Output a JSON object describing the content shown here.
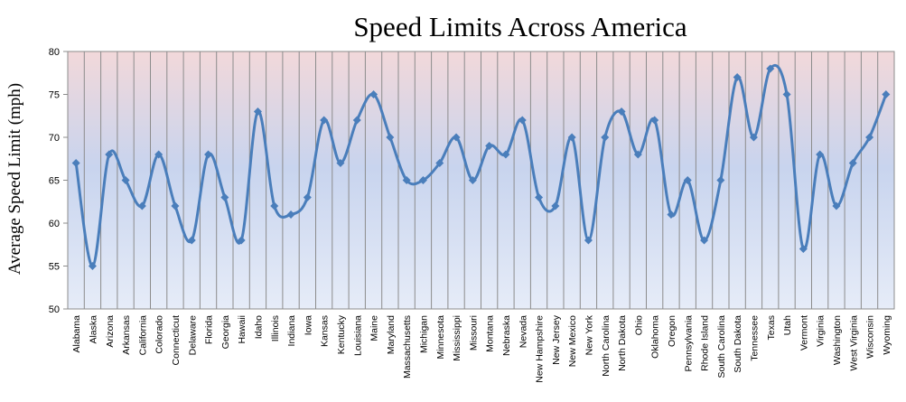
{
  "chart_data": {
    "type": "line",
    "title": "Speed Limits Across America",
    "xlabel": "",
    "ylabel": "Average Speed Limit (mph)",
    "ylim": [
      50,
      80
    ],
    "yticks": [
      50,
      55,
      60,
      65,
      70,
      75,
      80
    ],
    "grid": "vertical lines between categories",
    "legend": "none",
    "series_color": "#4a7ebb",
    "categories": [
      "Alabama",
      "Alaska",
      "Arizona",
      "Arkansas",
      "California",
      "Colorado",
      "Connecticut",
      "Delaware",
      "Florida",
      "Georgia",
      "Hawaii",
      "Idaho",
      "Illinois",
      "Indiana",
      "Iowa",
      "Kansas",
      "Kentucky",
      "Louisiana",
      "Maine",
      "Maryland",
      "Massachusetts",
      "Michigan",
      "Minnesota",
      "Mississippi",
      "Missouri",
      "Montana",
      "Nebraska",
      "Nevada",
      "New Hampshire",
      "New Jersey",
      "New Mexico",
      "New York",
      "North Carolina",
      "North Dakota",
      "Ohio",
      "Oklahoma",
      "Oregon",
      "Pennsylvania",
      "Rhode Island",
      "South Carolina",
      "South Dakota",
      "Tennessee",
      "Texas",
      "Utah",
      "Vermont",
      "Virginia",
      "Washington",
      "West Virginia",
      "Wisconsin",
      "Wyoming"
    ],
    "values": [
      67,
      55,
      68,
      65,
      62,
      68,
      62,
      58,
      68,
      63,
      58,
      73,
      62,
      61,
      63,
      72,
      67,
      72,
      75,
      70,
      65,
      65,
      67,
      70,
      65,
      69,
      68,
      72,
      63,
      62,
      70,
      58,
      70,
      73,
      68,
      72,
      61,
      65,
      58,
      65,
      77,
      70,
      78,
      75,
      57,
      68,
      62,
      67,
      70,
      75
    ]
  }
}
